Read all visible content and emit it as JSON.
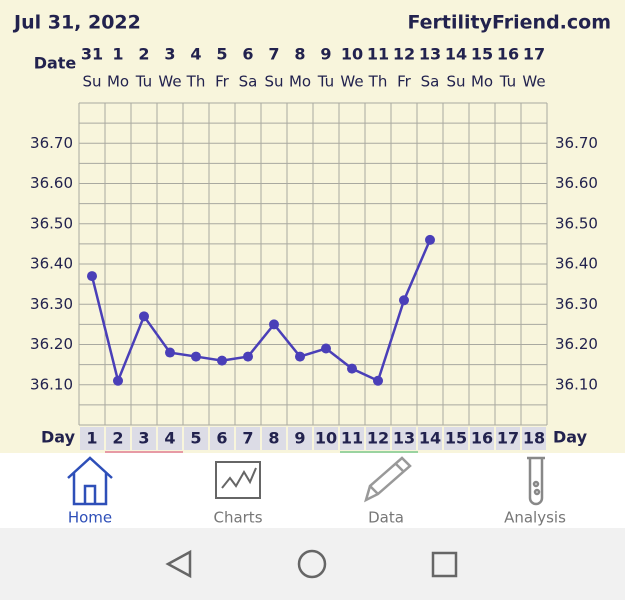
{
  "header": {
    "date": "Jul 31, 2022",
    "site": "FertilityFriend.com",
    "date_label": "Date",
    "day_label": "Day"
  },
  "chart_data": {
    "type": "line",
    "color": "#4a3fb8",
    "days": [
      1,
      2,
      3,
      4,
      5,
      6,
      7,
      8,
      9,
      10,
      11,
      12,
      13,
      14,
      15,
      16,
      17,
      18
    ],
    "dates": [
      31,
      1,
      2,
      3,
      4,
      5,
      6,
      7,
      8,
      9,
      10,
      11,
      12,
      13,
      14,
      15,
      16,
      17
    ],
    "weekdays": [
      "Su",
      "Mo",
      "Tu",
      "We",
      "Th",
      "Fr",
      "Sa",
      "Su",
      "Mo",
      "Tu",
      "We",
      "Th",
      "Fr",
      "Sa",
      "Su",
      "Mo",
      "Tu",
      "We"
    ],
    "values": [
      36.37,
      36.11,
      36.27,
      36.18,
      36.17,
      36.16,
      36.17,
      36.25,
      36.17,
      36.19,
      36.14,
      36.11,
      36.31,
      36.46,
      null,
      null,
      null,
      null
    ],
    "ylim": [
      36.0,
      36.8
    ],
    "yticks": [
      {
        "value": 36.1,
        "label": "36.10"
      },
      {
        "value": 36.2,
        "label": "36.20"
      },
      {
        "value": 36.3,
        "label": "36.30"
      },
      {
        "value": 36.4,
        "label": "36.40"
      },
      {
        "value": 36.5,
        "label": "36.50"
      },
      {
        "value": 36.6,
        "label": "36.60"
      },
      {
        "value": 36.7,
        "label": "36.70"
      }
    ],
    "ygrid": [
      36.0,
      36.05,
      36.1,
      36.15,
      36.2,
      36.25,
      36.3,
      36.35,
      36.4,
      36.45,
      36.5,
      36.55,
      36.6,
      36.65,
      36.7,
      36.75,
      36.8
    ],
    "grid": true
  },
  "nav": [
    {
      "label": "Home"
    },
    {
      "label": "Charts"
    },
    {
      "label": "Data"
    },
    {
      "label": "Analysis"
    }
  ]
}
